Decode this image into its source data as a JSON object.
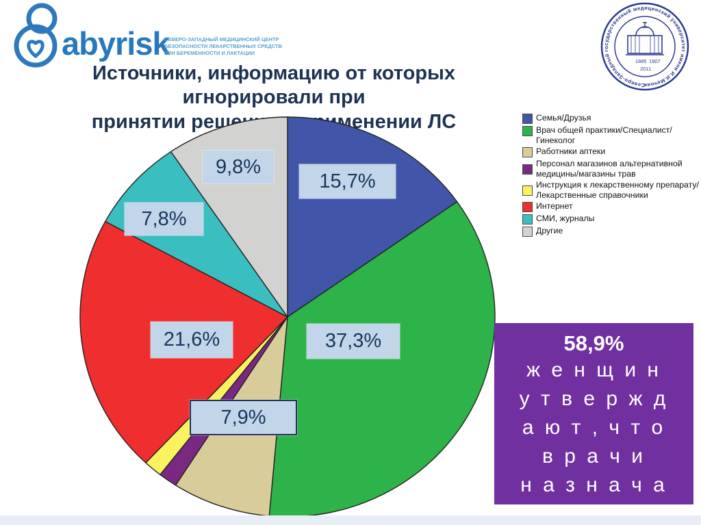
{
  "slide_title": {
    "line1": "Источники, информацию от которых игнорировали при",
    "line2": "принятии решения о применении ЛС"
  },
  "logo": {
    "brand_text": "abyrisk",
    "tagline_lines": [
      "Северо-Западный медицинский центр",
      "безопасности лекарственных средств",
      "при беременности и лактации"
    ]
  },
  "seal": {
    "ring_text": "Северо-Западный государственный медицинский университет имени И.И.Мечникова",
    "year_left": "1885",
    "year_right": "1907",
    "year_bottom": "2011"
  },
  "chart_data": {
    "type": "pie",
    "title": "Источники, информацию от которых игнорировали при принятии решения о применении ЛС",
    "start_angle": "top",
    "direction": "clockwise",
    "legend_position": "right",
    "slices": [
      {
        "label": "Семья/Друзья",
        "value": 15.7,
        "display": "15,7%",
        "color": "#4156A8"
      },
      {
        "label": "Врач общей практики/Специалист/Гинеколог",
        "value": 37.3,
        "display": "37,3%",
        "color": "#2DB34A"
      },
      {
        "label": "Работники аптеки",
        "value": 7.9,
        "display": "7,9%",
        "color": "#D8CD9A"
      },
      {
        "label": "Персонал магазинов альтернативной медицины/магазины трав",
        "value": 1.5,
        "display": "",
        "color": "#7B2882",
        "estimated": true
      },
      {
        "label": "Инструкция к лекарственному препарату/Лекарственные справочники",
        "value": 1.5,
        "display": "",
        "color": "#FBF25F",
        "estimated": true
      },
      {
        "label": "Интернет",
        "value": 21.6,
        "display": "21,6%",
        "color": "#EE2E2F"
      },
      {
        "label": "СМИ, журналы",
        "value": 7.8,
        "display": "7,8%",
        "color": "#3BBEC0"
      },
      {
        "label": "Другие",
        "value": 9.8,
        "display": "9,8%",
        "color": "#D2D2D1"
      }
    ]
  },
  "callout": {
    "percent": "58,9%",
    "lines": [
      "ж е н щ и н",
      "у т в е р ж д",
      "а ю т , ч т о",
      "в р а ч и",
      "н а з н а ч а"
    ]
  },
  "colors": {
    "title_text": "#1D3352",
    "label_box_bg": "#C3D5E9",
    "label_box_text": "#17365D",
    "callout_bg": "#7030A0",
    "brand_blue": "#2878BE",
    "seal_blue": "#2B3990",
    "bottom_strip": "#E8EEF6"
  }
}
